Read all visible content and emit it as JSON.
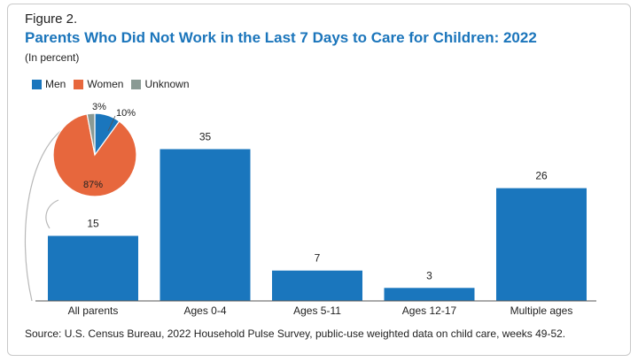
{
  "figure_label": "Figure 2.",
  "colors": {
    "men": "#1a76bd",
    "women": "#e7673d",
    "unknown": "#8a9a94",
    "axis": "#555555",
    "connector": "#b8b8b8"
  },
  "chart_data": [
    {
      "type": "bar",
      "title": "Parents Who Did Not Work in the Last 7 Days to Care for Children: 2022",
      "subtitle": "(In percent)",
      "categories": [
        "All parents",
        "Ages 0-4",
        "Ages 5-11",
        "Ages 12-17",
        "Multiple ages"
      ],
      "values": [
        15,
        35,
        7,
        3,
        26
      ],
      "data_labels": [
        "15",
        "35",
        "7",
        "3",
        "26"
      ],
      "ylim": [
        0,
        40
      ],
      "grid": false
    },
    {
      "type": "pie",
      "legend": [
        "Men",
        "Women",
        "Unknown"
      ],
      "legend_position": "top-left",
      "slices": [
        {
          "label": "Men",
          "value": 10,
          "text": "10%"
        },
        {
          "label": "Women",
          "value": 87,
          "text": "87%"
        },
        {
          "label": "Unknown",
          "value": 3,
          "text": "3%"
        }
      ]
    }
  ],
  "source": "Source: U.S. Census Bureau, 2022 Household Pulse Survey, public-use weighted data on child care, weeks 49-52."
}
